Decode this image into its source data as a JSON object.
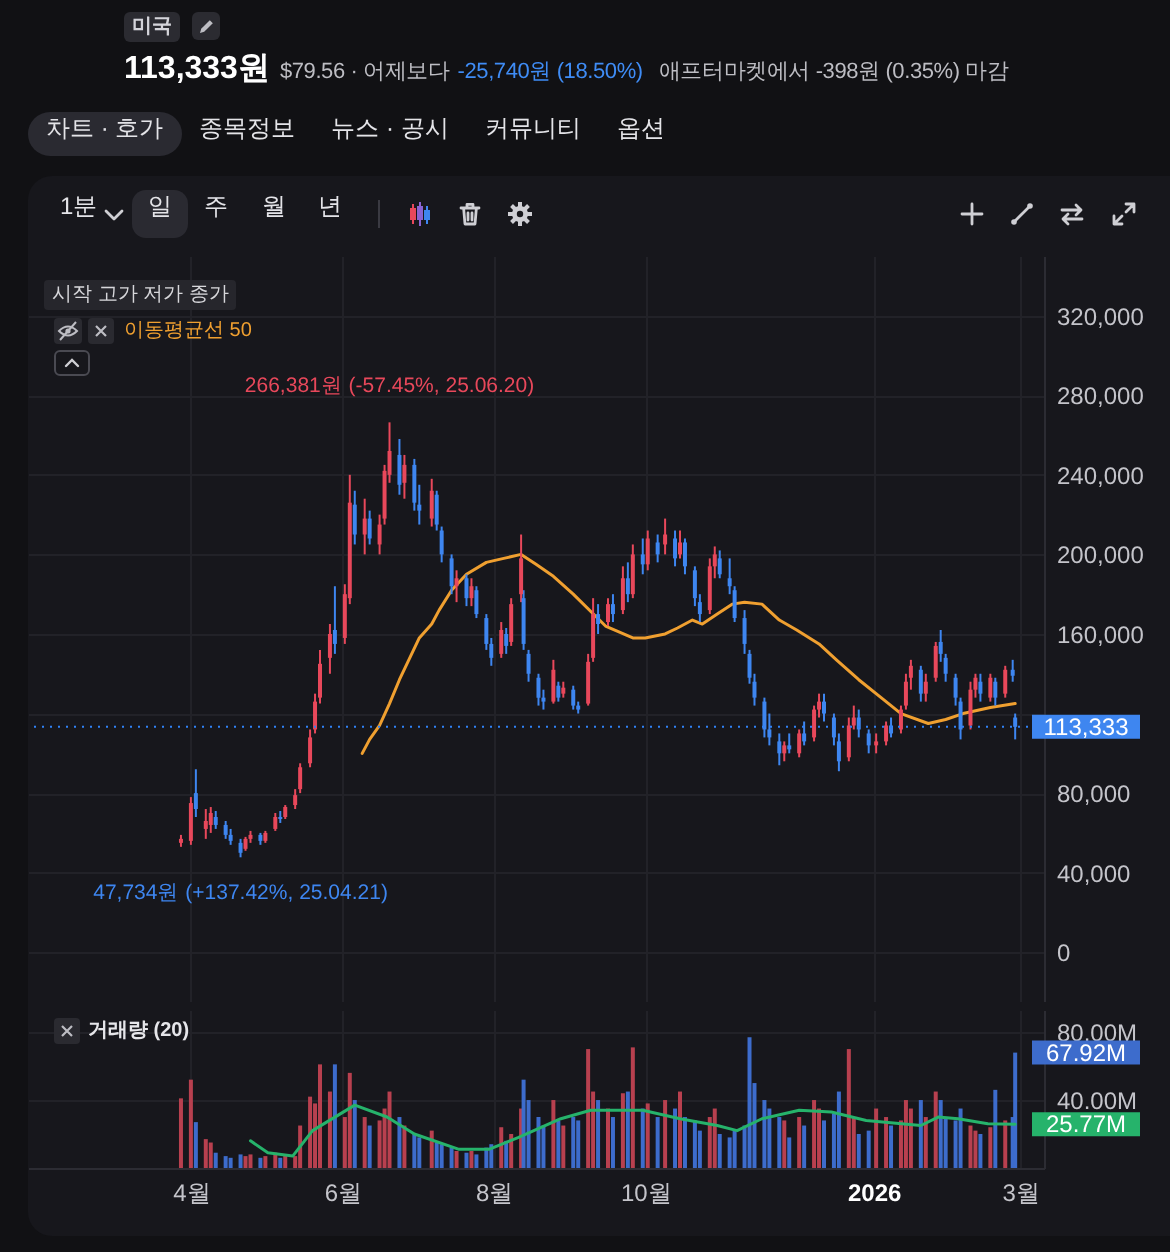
{
  "chart_data": [
    {
      "type": "other",
      "title": "113,333원",
      "annotations": [
        "미국",
        "$79.56 · 어제보다",
        "-25,740원 (18.50%)",
        "애프터마켓에서 -398원 (0.35%) 마감",
        "차트 · 호가",
        "종목정보",
        "뉴스 · 공시",
        "커뮤니티",
        "옵션",
        "1분",
        "일",
        "주",
        "월",
        "년"
      ]
    },
    {
      "type": "candlestick",
      "legend_title": "시작 고가 저가 종가",
      "legend": "top left",
      "tick_labels": "y",
      "grid": true,
      "x": [
        "2025-03-28",
        "2025-04-01",
        "2025-04-03",
        "2025-04-07",
        "2025-04-09",
        "2025-04-11",
        "2025-04-15",
        "2025-04-17",
        "2025-04-21",
        "2025-04-23",
        "2025-04-25",
        "2025-04-29",
        "2025-05-01",
        "2025-05-05",
        "2025-05-07",
        "2025-05-09",
        "2025-05-13",
        "2025-05-15",
        "2025-05-19",
        "2025-05-21",
        "2025-05-23",
        "2025-05-27",
        "2025-05-29",
        "2025-06-02",
        "2025-06-04",
        "2025-06-06",
        "2025-06-10",
        "2025-06-12",
        "2025-06-16",
        "2025-06-18",
        "2025-06-20",
        "2025-06-24",
        "2025-06-26",
        "2025-06-30",
        "2025-07-02",
        "2025-07-07",
        "2025-07-09",
        "2025-07-11",
        "2025-07-15",
        "2025-07-17",
        "2025-07-21",
        "2025-07-23",
        "2025-07-25",
        "2025-07-29",
        "2025-07-31",
        "2025-08-04",
        "2025-08-06",
        "2025-08-08",
        "2025-08-12",
        "2025-08-13",
        "2025-08-15",
        "2025-08-19",
        "2025-08-21",
        "2025-08-25",
        "2025-08-27",
        "2025-08-29",
        "2025-09-02",
        "2025-09-04",
        "2025-09-08",
        "2025-09-10",
        "2025-09-12",
        "2025-09-16",
        "2025-09-18",
        "2025-09-22",
        "2025-09-24",
        "2025-09-26",
        "2025-09-30",
        "2025-10-02",
        "2025-10-06",
        "2025-10-09",
        "2025-10-13",
        "2025-10-15",
        "2025-10-17",
        "2025-10-21",
        "2025-10-23",
        "2025-10-27",
        "2025-10-29",
        "2025-10-31",
        "2025-11-04",
        "2025-11-06",
        "2025-11-10",
        "2025-11-12",
        "2025-11-14",
        "2025-11-18",
        "2025-11-20",
        "2025-11-24",
        "2025-11-26",
        "2025-11-28",
        "2025-12-02",
        "2025-12-04",
        "2025-12-08",
        "2025-12-10",
        "2025-12-12",
        "2025-12-16",
        "2025-12-18",
        "2025-12-22",
        "2025-12-24",
        "2025-12-26",
        "2025-12-30",
        "2026-01-02",
        "2026-01-06",
        "2026-01-08",
        "2026-01-12",
        "2026-01-14",
        "2026-01-16",
        "2026-01-20",
        "2026-01-22",
        "2026-01-26",
        "2026-01-28",
        "2026-01-30",
        "2026-02-03",
        "2026-02-05",
        "2026-02-09",
        "2026-02-11",
        "2026-02-13",
        "2026-02-17",
        "2026-02-19",
        "2026-02-23",
        "2026-02-26",
        "2026-02-27"
      ],
      "ohlc": [
        [
          55000,
          59000,
          53000,
          57000
        ],
        [
          56000,
          78000,
          54000,
          75000
        ],
        [
          80000,
          92000,
          68000,
          72000
        ],
        [
          62000,
          72000,
          57000,
          66000
        ],
        [
          64000,
          73000,
          60000,
          70000
        ],
        [
          68000,
          71000,
          62000,
          64000
        ],
        [
          64000,
          66000,
          57000,
          59000
        ],
        [
          59000,
          62000,
          54000,
          56000
        ],
        [
          55000,
          57000,
          47734,
          50000
        ],
        [
          52000,
          58000,
          51000,
          57000
        ],
        [
          57000,
          61000,
          55000,
          59000
        ],
        [
          59000,
          60000,
          54000,
          56000
        ],
        [
          56000,
          61000,
          55000,
          60000
        ],
        [
          62000,
          70000,
          61000,
          68000
        ],
        [
          68000,
          71000,
          65000,
          67000
        ],
        [
          68000,
          74000,
          67000,
          73000
        ],
        [
          74000,
          82000,
          72000,
          79000
        ],
        [
          82000,
          95000,
          80000,
          93000
        ],
        [
          95000,
          112000,
          93000,
          108000
        ],
        [
          112000,
          130000,
          110000,
          126000
        ],
        [
          128000,
          152000,
          125000,
          145000
        ],
        [
          148000,
          165000,
          140000,
          160000
        ],
        [
          162000,
          184000,
          150000,
          155000
        ],
        [
          158000,
          185000,
          155000,
          180000
        ],
        [
          178000,
          240000,
          175000,
          226000
        ],
        [
          225000,
          232000,
          205000,
          210000
        ],
        [
          210000,
          228000,
          200000,
          218000
        ],
        [
          218000,
          222000,
          205000,
          208000
        ],
        [
          205000,
          220000,
          200000,
          215000
        ],
        [
          218000,
          245000,
          215000,
          242000
        ],
        [
          240000,
          266381,
          236000,
          252000
        ],
        [
          250000,
          258000,
          230000,
          235000
        ],
        [
          236000,
          250000,
          228000,
          245000
        ],
        [
          245000,
          248000,
          222000,
          226000
        ],
        [
          225000,
          235000,
          215000,
          222000
        ],
        [
          218000,
          238000,
          214000,
          232000
        ],
        [
          230000,
          232000,
          212000,
          215000
        ],
        [
          212000,
          214000,
          196000,
          200000
        ],
        [
          198000,
          200000,
          180000,
          184000
        ],
        [
          184000,
          192000,
          176000,
          188000
        ],
        [
          188000,
          190000,
          174000,
          178000
        ],
        [
          178000,
          188000,
          174000,
          184000
        ],
        [
          182000,
          184000,
          168000,
          170000
        ],
        [
          168000,
          170000,
          152000,
          155000
        ],
        [
          155000,
          158000,
          144000,
          148000
        ],
        [
          150000,
          166000,
          148000,
          162000
        ],
        [
          160000,
          163000,
          150000,
          154000
        ],
        [
          156000,
          178000,
          154000,
          175000
        ],
        [
          180000,
          210000,
          176000,
          198000
        ],
        [
          178000,
          182000,
          152000,
          155000
        ],
        [
          150000,
          152000,
          136000,
          140000
        ],
        [
          138000,
          140000,
          124000,
          128000
        ],
        [
          128000,
          132000,
          122000,
          126000
        ],
        [
          126000,
          147000,
          125000,
          142000
        ],
        [
          134000,
          136000,
          126000,
          128000
        ],
        [
          130000,
          136000,
          128000,
          133000
        ],
        [
          132000,
          134000,
          122000,
          124000
        ],
        [
          124000,
          126000,
          120000,
          122000
        ],
        [
          125000,
          150000,
          124000,
          146000
        ],
        [
          148000,
          178000,
          146000,
          170000
        ],
        [
          170000,
          175000,
          160000,
          165000
        ],
        [
          166000,
          178000,
          164000,
          175000
        ],
        [
          175000,
          180000,
          166000,
          170000
        ],
        [
          172000,
          194000,
          170000,
          188000
        ],
        [
          188000,
          196000,
          176000,
          180000
        ],
        [
          180000,
          205000,
          178000,
          200000
        ],
        [
          200000,
          208000,
          190000,
          195000
        ],
        [
          195000,
          212000,
          192000,
          208000
        ],
        [
          206000,
          210000,
          196000,
          200000
        ],
        [
          205000,
          218000,
          200000,
          210000
        ],
        [
          208000,
          212000,
          194000,
          198000
        ],
        [
          200000,
          212000,
          198000,
          206000
        ],
        [
          206000,
          208000,
          190000,
          194000
        ],
        [
          192000,
          194000,
          174000,
          178000
        ],
        [
          176000,
          180000,
          166000,
          170000
        ],
        [
          172000,
          198000,
          170000,
          194000
        ],
        [
          194000,
          204000,
          188000,
          200000
        ],
        [
          198000,
          202000,
          188000,
          190000
        ],
        [
          188000,
          198000,
          180000,
          184000
        ],
        [
          182000,
          184000,
          166000,
          168000
        ],
        [
          168000,
          172000,
          150000,
          155000
        ],
        [
          150000,
          152000,
          135000,
          138000
        ],
        [
          136000,
          140000,
          124000,
          128000
        ],
        [
          126000,
          128000,
          108000,
          112000
        ],
        [
          112000,
          120000,
          104000,
          108000
        ],
        [
          106000,
          110000,
          94000,
          100000
        ],
        [
          100000,
          106000,
          96000,
          104000
        ],
        [
          104000,
          110000,
          100000,
          102000
        ],
        [
          100000,
          112000,
          98000,
          110000
        ],
        [
          110000,
          116000,
          104000,
          106000
        ],
        [
          108000,
          124000,
          106000,
          122000
        ],
        [
          122000,
          130000,
          118000,
          126000
        ],
        [
          126000,
          130000,
          116000,
          120000
        ],
        [
          118000,
          120000,
          104000,
          108000
        ],
        [
          106000,
          110000,
          91000,
          96000
        ],
        [
          98000,
          118000,
          96000,
          114000
        ],
        [
          114000,
          124000,
          112000,
          118000
        ],
        [
          118000,
          122000,
          108000,
          112000
        ],
        [
          110000,
          112000,
          100000,
          104000
        ],
        [
          104000,
          110000,
          100000,
          106000
        ],
        [
          106000,
          116000,
          104000,
          114000
        ],
        [
          114000,
          118000,
          108000,
          110000
        ],
        [
          112000,
          124000,
          110000,
          122000
        ],
        [
          124000,
          140000,
          122000,
          136000
        ],
        [
          138000,
          147000,
          132000,
          144000
        ],
        [
          142000,
          144000,
          126000,
          130000
        ],
        [
          130000,
          140000,
          126000,
          136000
        ],
        [
          138000,
          156000,
          136000,
          154000
        ],
        [
          156000,
          162000,
          146000,
          150000
        ],
        [
          148000,
          150000,
          136000,
          140000
        ],
        [
          138000,
          140000,
          124000,
          128000
        ],
        [
          126000,
          128000,
          107000,
          112000
        ],
        [
          114000,
          136000,
          112000,
          132000
        ],
        [
          132000,
          140000,
          128000,
          138000
        ],
        [
          136000,
          140000,
          126000,
          130000
        ],
        [
          128000,
          140000,
          126000,
          138000
        ],
        [
          136000,
          138000,
          124000,
          128000
        ],
        [
          130000,
          144000,
          128000,
          142000
        ],
        [
          142000,
          147000,
          136000,
          139000
        ],
        [
          118000,
          120000,
          107000,
          113333
        ]
      ],
      "colors": [
        "#e8485b",
        "#e8485b",
        "#3e86f0",
        "#e8485b",
        "#e8485b",
        "#3e86f0",
        "#3e86f0",
        "#3e86f0",
        "#3e86f0",
        "#e8485b",
        "#e8485b",
        "#3e86f0",
        "#e8485b",
        "#e8485b",
        "#3e86f0",
        "#e8485b",
        "#e8485b",
        "#e8485b",
        "#e8485b",
        "#e8485b",
        "#e8485b",
        "#e8485b",
        "#3e86f0",
        "#e8485b",
        "#e8485b",
        "#3e86f0",
        "#e8485b",
        "#3e86f0",
        "#e8485b",
        "#e8485b",
        "#e8485b",
        "#3e86f0",
        "#e8485b",
        "#3e86f0",
        "#3e86f0",
        "#e8485b",
        "#3e86f0",
        "#3e86f0",
        "#3e86f0",
        "#e8485b",
        "#3e86f0",
        "#e8485b",
        "#3e86f0",
        "#3e86f0",
        "#3e86f0",
        "#e8485b",
        "#3e86f0",
        "#e8485b",
        "#e8485b",
        "#3e86f0",
        "#3e86f0",
        "#3e86f0",
        "#3e86f0",
        "#e8485b",
        "#3e86f0",
        "#e8485b",
        "#3e86f0",
        "#3e86f0",
        "#e8485b",
        "#e8485b",
        "#3e86f0",
        "#e8485b",
        "#3e86f0",
        "#e8485b",
        "#3e86f0",
        "#e8485b",
        "#3e86f0",
        "#e8485b",
        "#3e86f0",
        "#e8485b",
        "#3e86f0",
        "#e8485b",
        "#3e86f0",
        "#3e86f0",
        "#3e86f0",
        "#e8485b",
        "#e8485b",
        "#3e86f0",
        "#3e86f0",
        "#3e86f0",
        "#3e86f0",
        "#3e86f0",
        "#3e86f0",
        "#3e86f0",
        "#3e86f0",
        "#3e86f0",
        "#e8485b",
        "#3e86f0",
        "#e8485b",
        "#3e86f0",
        "#e8485b",
        "#e8485b",
        "#3e86f0",
        "#3e86f0",
        "#3e86f0",
        "#e8485b",
        "#e8485b",
        "#3e86f0",
        "#3e86f0",
        "#e8485b",
        "#e8485b",
        "#3e86f0",
        "#e8485b",
        "#e8485b",
        "#e8485b",
        "#3e86f0",
        "#e8485b",
        "#e8485b",
        "#3e86f0",
        "#3e86f0",
        "#3e86f0",
        "#3e86f0",
        "#e8485b",
        "#e8485b",
        "#3e86f0",
        "#e8485b",
        "#3e86f0",
        "#e8485b",
        "#3e86f0",
        "#3e86f0"
      ],
      "value_labels": [
        null,
        null,
        null,
        null,
        null,
        null,
        null,
        null,
        null,
        null,
        null,
        null,
        null,
        null,
        null,
        null,
        null,
        null,
        null,
        null,
        null,
        null,
        null,
        null,
        null,
        null,
        null,
        null,
        null,
        null,
        null,
        null,
        null,
        null,
        null,
        null,
        null,
        null,
        null,
        null,
        null,
        null,
        null,
        null,
        null,
        null,
        null,
        null,
        null,
        null,
        null,
        null,
        null,
        null,
        null,
        null,
        null,
        null,
        null,
        null,
        null,
        null,
        null,
        null,
        null,
        null,
        null,
        null,
        null,
        null,
        null,
        null,
        null,
        null,
        null,
        null,
        null,
        null,
        null,
        null,
        null,
        null,
        null,
        null,
        null,
        null,
        null,
        null,
        null,
        null,
        null,
        null,
        null,
        null,
        null,
        null,
        null,
        null,
        null,
        null,
        null,
        null,
        null,
        null,
        null,
        null,
        null,
        null,
        null,
        null,
        null,
        null,
        null,
        null,
        null,
        null,
        null,
        null,
        null,
        "113,333"
      ],
      "series": [
        {
          "type": "line",
          "name": "이동평균선 50",
          "color": "#f0a030",
          "x": [
            "2025-06-09",
            "2025-06-12",
            "2025-06-16",
            "2025-06-20",
            "2025-06-24",
            "2025-07-02",
            "2025-07-07",
            "2025-07-10",
            "2025-07-15",
            "2025-07-21",
            "2025-07-29",
            "2025-08-05",
            "2025-08-12",
            "2025-08-18",
            "2025-08-25",
            "2025-09-02",
            "2025-09-15",
            "2025-09-26",
            "2025-10-01",
            "2025-10-09",
            "2025-10-14",
            "2025-10-20",
            "2025-10-24",
            "2025-10-30",
            "2025-11-05",
            "2025-11-10",
            "2025-11-17",
            "2025-11-24",
            "2025-12-01",
            "2025-12-10",
            "2025-12-17",
            "2025-12-26",
            "2026-01-05",
            "2026-01-12",
            "2026-01-23",
            "2026-01-30",
            "2026-02-06",
            "2026-02-17",
            "2026-02-27"
          ],
          "values": [
            100000,
            107000,
            114000,
            125000,
            137000,
            158000,
            165000,
            172000,
            182000,
            190000,
            196000,
            198000,
            200000,
            195000,
            189000,
            180000,
            164000,
            158000,
            158000,
            160000,
            163000,
            167000,
            165000,
            170000,
            175000,
            176000,
            175000,
            167000,
            162000,
            155000,
            147000,
            137000,
            127000,
            120000,
            115000,
            117000,
            120000,
            123000,
            125000
          ]
        }
      ],
      "xlim": [
        "2025-01-27",
        "2026-03-09"
      ],
      "xticks": [
        {
          "value": "2025-04-01",
          "label": null
        },
        {
          "value": "2025-06-01",
          "label": null
        },
        {
          "value": "2025-08-01",
          "label": null
        },
        {
          "value": "2025-10-01",
          "label": null
        },
        {
          "value": "2026-01-01",
          "label": null
        },
        {
          "value": "2026-03-01",
          "label": null
        }
      ],
      "ylim": [
        -25000,
        350000
      ],
      "yticks": [
        0,
        {
          "value": 40000,
          "label": "40,000"
        },
        {
          "value": 80000,
          "label": "80,000"
        },
        {
          "value": 120000,
          "label": null
        },
        {
          "value": 160000,
          "label": "160,000"
        },
        {
          "value": 200000,
          "label": "200,000"
        },
        {
          "value": 240000,
          "label": "240,000"
        },
        {
          "value": 280000,
          "label": "280,000"
        },
        {
          "value": 320000,
          "label": "320,000"
        }
      ],
      "ref_lines": [
        {
          "axis": "y",
          "value": 113333,
          "color": "#3182f6",
          "line_style": "dotted"
        }
      ],
      "annotations": [
        {
          "text": "266,381원 (-57.45%, 25.06.20)",
          "x": "2025-06-20",
          "y": 266381
        },
        {
          "text": "47,734원 (+137.42%, 25.04.21)",
          "x": "2025-04-21",
          "y": 47734
        }
      ]
    },
    {
      "type": "bar",
      "title": "거래량 (20)",
      "grid": true,
      "x": [
        "2025-03-28",
        "2025-04-01",
        "2025-04-03",
        "2025-04-07",
        "2025-04-09",
        "2025-04-11",
        "2025-04-15",
        "2025-04-17",
        "2025-04-21",
        "2025-04-23",
        "2025-04-25",
        "2025-04-29",
        "2025-05-01",
        "2025-05-05",
        "2025-05-07",
        "2025-05-09",
        "2025-05-13",
        "2025-05-15",
        "2025-05-19",
        "2025-05-21",
        "2025-05-23",
        "2025-05-27",
        "2025-05-29",
        "2025-06-02",
        "2025-06-04",
        "2025-06-06",
        "2025-06-10",
        "2025-06-12",
        "2025-06-16",
        "2025-06-18",
        "2025-06-20",
        "2025-06-24",
        "2025-06-26",
        "2025-06-30",
        "2025-07-02",
        "2025-07-07",
        "2025-07-09",
        "2025-07-11",
        "2025-07-15",
        "2025-07-17",
        "2025-07-21",
        "2025-07-23",
        "2025-07-25",
        "2025-07-29",
        "2025-07-31",
        "2025-08-04",
        "2025-08-06",
        "2025-08-08",
        "2025-08-12",
        "2025-08-13",
        "2025-08-15",
        "2025-08-19",
        "2025-08-21",
        "2025-08-25",
        "2025-08-27",
        "2025-08-29",
        "2025-09-02",
        "2025-09-04",
        "2025-09-08",
        "2025-09-10",
        "2025-09-12",
        "2025-09-16",
        "2025-09-18",
        "2025-09-22",
        "2025-09-24",
        "2025-09-26",
        "2025-09-30",
        "2025-10-02",
        "2025-10-06",
        "2025-10-09",
        "2025-10-13",
        "2025-10-15",
        "2025-10-17",
        "2025-10-21",
        "2025-10-23",
        "2025-10-27",
        "2025-10-29",
        "2025-10-31",
        "2025-11-04",
        "2025-11-06",
        "2025-11-10",
        "2025-11-12",
        "2025-11-14",
        "2025-11-18",
        "2025-11-20",
        "2025-11-24",
        "2025-11-26",
        "2025-11-28",
        "2025-12-02",
        "2025-12-04",
        "2025-12-08",
        "2025-12-10",
        "2025-12-12",
        "2025-12-16",
        "2025-12-18",
        "2025-12-22",
        "2025-12-24",
        "2025-12-26",
        "2025-12-30",
        "2026-01-02",
        "2026-01-06",
        "2026-01-08",
        "2026-01-12",
        "2026-01-14",
        "2026-01-16",
        "2026-01-20",
        "2026-01-22",
        "2026-01-26",
        "2026-01-28",
        "2026-01-30",
        "2026-02-03",
        "2026-02-05",
        "2026-02-09",
        "2026-02-11",
        "2026-02-13",
        "2026-02-17",
        "2026-02-19",
        "2026-02-23",
        "2026-02-26",
        "2026-02-27"
      ],
      "values": [
        41,
        52,
        27,
        17,
        15,
        9,
        7,
        6,
        8,
        7,
        8,
        6,
        7,
        9,
        6,
        8,
        7,
        25,
        42,
        38,
        61,
        45,
        61,
        30,
        56,
        40,
        30,
        25,
        28,
        35,
        45,
        30,
        25,
        20,
        18,
        22,
        15,
        14,
        12,
        10,
        9,
        10,
        8,
        12,
        14,
        24,
        16,
        20,
        35,
        52,
        40,
        30,
        25,
        40,
        28,
        25,
        30,
        28,
        70,
        45,
        40,
        35,
        30,
        44,
        45,
        71,
        35,
        38,
        30,
        40,
        35,
        45,
        30,
        28,
        22,
        30,
        35,
        20,
        18,
        22,
        25,
        77,
        50,
        40,
        35,
        30,
        28,
        18,
        30,
        25,
        40,
        35,
        28,
        32,
        45,
        70,
        30,
        20,
        22,
        35,
        30,
        25,
        28,
        40,
        35,
        40,
        30,
        45,
        40,
        30,
        28,
        35,
        25,
        22,
        20,
        24,
        46,
        28,
        30,
        67.92
      ],
      "colors": [
        "#b8404f",
        "#b8404f",
        "#3d6ccc",
        "#b8404f",
        "#b8404f",
        "#3d6ccc",
        "#3d6ccc",
        "#3d6ccc",
        "#3d6ccc",
        "#b8404f",
        "#b8404f",
        "#3d6ccc",
        "#b8404f",
        "#b8404f",
        "#3d6ccc",
        "#b8404f",
        "#b8404f",
        "#b8404f",
        "#b8404f",
        "#b8404f",
        "#b8404f",
        "#b8404f",
        "#3d6ccc",
        "#b8404f",
        "#b8404f",
        "#3d6ccc",
        "#b8404f",
        "#3d6ccc",
        "#b8404f",
        "#b8404f",
        "#b8404f",
        "#3d6ccc",
        "#b8404f",
        "#3d6ccc",
        "#3d6ccc",
        "#b8404f",
        "#3d6ccc",
        "#3d6ccc",
        "#3d6ccc",
        "#b8404f",
        "#3d6ccc",
        "#b8404f",
        "#3d6ccc",
        "#3d6ccc",
        "#3d6ccc",
        "#b8404f",
        "#3d6ccc",
        "#b8404f",
        "#b8404f",
        "#3d6ccc",
        "#3d6ccc",
        "#3d6ccc",
        "#3d6ccc",
        "#b8404f",
        "#3d6ccc",
        "#b8404f",
        "#3d6ccc",
        "#3d6ccc",
        "#b8404f",
        "#b8404f",
        "#3d6ccc",
        "#b8404f",
        "#3d6ccc",
        "#b8404f",
        "#3d6ccc",
        "#b8404f",
        "#3d6ccc",
        "#b8404f",
        "#3d6ccc",
        "#b8404f",
        "#3d6ccc",
        "#b8404f",
        "#3d6ccc",
        "#3d6ccc",
        "#3d6ccc",
        "#b8404f",
        "#b8404f",
        "#3d6ccc",
        "#3d6ccc",
        "#3d6ccc",
        "#3d6ccc",
        "#3d6ccc",
        "#3d6ccc",
        "#3d6ccc",
        "#3d6ccc",
        "#3d6ccc",
        "#b8404f",
        "#3d6ccc",
        "#b8404f",
        "#3d6ccc",
        "#b8404f",
        "#b8404f",
        "#3d6ccc",
        "#3d6ccc",
        "#3d6ccc",
        "#b8404f",
        "#b8404f",
        "#3d6ccc",
        "#3d6ccc",
        "#b8404f",
        "#b8404f",
        "#3d6ccc",
        "#b8404f",
        "#b8404f",
        "#b8404f",
        "#3d6ccc",
        "#b8404f",
        "#b8404f",
        "#3d6ccc",
        "#3d6ccc",
        "#3d6ccc",
        "#3d6ccc",
        "#b8404f",
        "#b8404f",
        "#3d6ccc",
        "#b8404f",
        "#3d6ccc",
        "#b8404f",
        "#3d6ccc",
        "#3d6ccc"
      ],
      "value_labels": [
        null,
        null,
        null,
        null,
        null,
        null,
        null,
        null,
        null,
        null,
        null,
        null,
        null,
        null,
        null,
        null,
        null,
        null,
        null,
        null,
        null,
        null,
        null,
        null,
        null,
        null,
        null,
        null,
        null,
        null,
        null,
        null,
        null,
        null,
        null,
        null,
        null,
        null,
        null,
        null,
        null,
        null,
        null,
        null,
        null,
        null,
        null,
        null,
        null,
        null,
        null,
        null,
        null,
        null,
        null,
        null,
        null,
        null,
        null,
        null,
        null,
        null,
        null,
        null,
        null,
        null,
        null,
        null,
        null,
        null,
        null,
        null,
        null,
        null,
        null,
        null,
        null,
        null,
        null,
        null,
        null,
        null,
        null,
        null,
        null,
        null,
        null,
        null,
        null,
        null,
        null,
        null,
        null,
        null,
        null,
        null,
        null,
        null,
        null,
        null,
        null,
        null,
        null,
        null,
        null,
        null,
        null,
        null,
        null,
        null,
        null,
        null,
        null,
        null,
        null,
        null,
        null,
        null,
        null,
        "67.92M"
      ],
      "series": [
        {
          "type": "line",
          "color": "#26b36b",
          "x": [
            "2025-04-25",
            "2025-05-02",
            "2025-05-12",
            "2025-05-20",
            "2025-06-06",
            "2025-06-19",
            "2025-06-30",
            "2025-07-18",
            "2025-07-30",
            "2025-08-11",
            "2025-08-28",
            "2025-09-09",
            "2025-09-30",
            "2025-10-15",
            "2025-10-30",
            "2025-11-07",
            "2025-11-17",
            "2025-12-02",
            "2025-12-15",
            "2025-12-29",
            "2026-01-20",
            "2026-01-27",
            "2026-02-04",
            "2026-02-16",
            "2026-02-27"
          ],
          "values": [
            16,
            9,
            7,
            22,
            37,
            30,
            20,
            11,
            11,
            18,
            29,
            34,
            34,
            29,
            25,
            22,
            29,
            34,
            33,
            28,
            25,
            30,
            29,
            26,
            25.77
          ],
          "value_labels": [
            null,
            null,
            null,
            null,
            null,
            null,
            null,
            null,
            null,
            null,
            null,
            null,
            null,
            null,
            null,
            null,
            null,
            null,
            null,
            null,
            null,
            null,
            null,
            null,
            "25.77M"
          ]
        }
      ],
      "xlim": [
        "2025-01-27",
        "2026-03-09"
      ],
      "xticks": [
        {
          "value": "2025-04-01",
          "label": "4월"
        },
        {
          "value": "2025-06-01",
          "label": "6월"
        },
        {
          "value": "2025-08-01",
          "label": "8월"
        },
        {
          "value": "2025-10-01",
          "label": "10월"
        },
        {
          "value": "2026-01-01",
          "label": "2026"
        },
        {
          "value": "2026-03-01",
          "label": "3월"
        }
      ],
      "ylim": [
        0,
        93
      ],
      "yticks": [
        {
          "value": 40,
          "label": "40.00M"
        },
        {
          "value": 80,
          "label": "80.00M"
        }
      ]
    }
  ]
}
